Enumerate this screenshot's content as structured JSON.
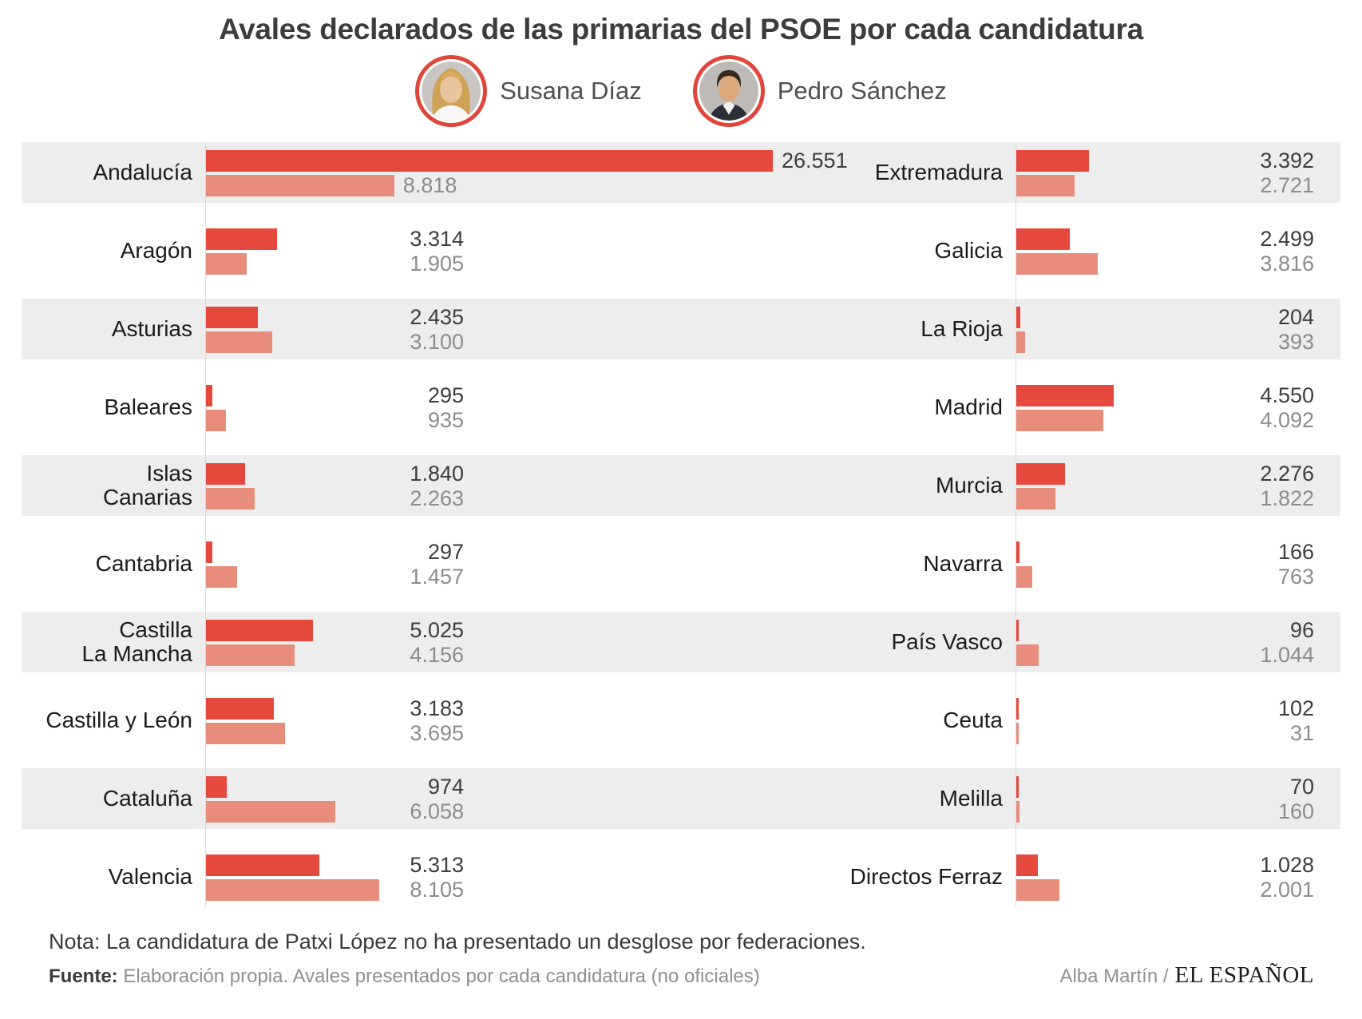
{
  "title": "Avales declarados de las primarias del PSOE por cada candidatura",
  "legend": {
    "items": [
      {
        "name": "Susana Díaz"
      },
      {
        "name": "Pedro Sánchez"
      }
    ]
  },
  "colors": {
    "diaz_bar": "#e5483d",
    "sanchez_bar": "#e88d7c",
    "avatar_ring": "#e0463c",
    "row_stripe": "#ededed",
    "axis_line": "#d9d9d9",
    "value_primary_text": "#3d3d3d",
    "value_secondary_text": "#8c8c8c",
    "region_text": "#1b1b1b",
    "title_text": "#3c3c3c",
    "note_text": "#3a3a3a",
    "source_text": "#8f8f8f",
    "logo_text": "#1d1d1d"
  },
  "chart_data": {
    "type": "bar",
    "orientation": "horizontal",
    "series": [
      "Susana Díaz",
      "Pedro Sánchez"
    ],
    "value_axis_max": 26551,
    "number_format": "es-ES thousands with dot",
    "legend_position": "top",
    "grid": false,
    "left_column": [
      {
        "region": "Andalucía",
        "region_lines": [
          "Andalucía"
        ],
        "values": [
          26551,
          8818
        ],
        "value_labels": [
          "26.551",
          "8.818"
        ]
      },
      {
        "region": "Aragón",
        "region_lines": [
          "Aragón"
        ],
        "values": [
          3314,
          1905
        ],
        "value_labels": [
          "3.314",
          "1.905"
        ]
      },
      {
        "region": "Asturias",
        "region_lines": [
          "Asturias"
        ],
        "values": [
          2435,
          3100
        ],
        "value_labels": [
          "2.435",
          "3.100"
        ]
      },
      {
        "region": "Baleares",
        "region_lines": [
          "Baleares"
        ],
        "values": [
          295,
          935
        ],
        "value_labels": [
          "295",
          "935"
        ]
      },
      {
        "region": "Islas Canarias",
        "region_lines": [
          "Islas",
          "Canarias"
        ],
        "values": [
          1840,
          2263
        ],
        "value_labels": [
          "1.840",
          "2.263"
        ]
      },
      {
        "region": "Cantabria",
        "region_lines": [
          "Cantabria"
        ],
        "values": [
          297,
          1457
        ],
        "value_labels": [
          "297",
          "1.457"
        ]
      },
      {
        "region": "Castilla La Mancha",
        "region_lines": [
          "Castilla",
          "La Mancha"
        ],
        "values": [
          5025,
          4156
        ],
        "value_labels": [
          "5.025",
          "4.156"
        ]
      },
      {
        "region": "Castilla y León",
        "region_lines": [
          "Castilla y León"
        ],
        "values": [
          3183,
          3695
        ],
        "value_labels": [
          "3.183",
          "3.695"
        ]
      },
      {
        "region": "Cataluña",
        "region_lines": [
          "Cataluña"
        ],
        "values": [
          974,
          6058
        ],
        "value_labels": [
          "974",
          "6.058"
        ]
      },
      {
        "region": "Valencia",
        "region_lines": [
          "Valencia"
        ],
        "values": [
          5313,
          8105
        ],
        "value_labels": [
          "5.313",
          "8.105"
        ]
      }
    ],
    "right_column": [
      {
        "region": "Extremadura",
        "region_lines": [
          "Extremadura"
        ],
        "values": [
          3392,
          2721
        ],
        "value_labels": [
          "3.392",
          "2.721"
        ]
      },
      {
        "region": "Galicia",
        "region_lines": [
          "Galicia"
        ],
        "values": [
          2499,
          3816
        ],
        "value_labels": [
          "2.499",
          "3.816"
        ]
      },
      {
        "region": "La Rioja",
        "region_lines": [
          "La Rioja"
        ],
        "values": [
          204,
          393
        ],
        "value_labels": [
          "204",
          "393"
        ]
      },
      {
        "region": "Madrid",
        "region_lines": [
          "Madrid"
        ],
        "values": [
          4550,
          4092
        ],
        "value_labels": [
          "4.550",
          "4.092"
        ]
      },
      {
        "region": "Murcia",
        "region_lines": [
          "Murcia"
        ],
        "values": [
          2276,
          1822
        ],
        "value_labels": [
          "2.276",
          "1.822"
        ]
      },
      {
        "region": "Navarra",
        "region_lines": [
          "Navarra"
        ],
        "values": [
          166,
          763
        ],
        "value_labels": [
          "166",
          "763"
        ]
      },
      {
        "region": "País Vasco",
        "region_lines": [
          "País Vasco"
        ],
        "values": [
          96,
          1044
        ],
        "value_labels": [
          "96",
          "1.044"
        ]
      },
      {
        "region": "Ceuta",
        "region_lines": [
          "Ceuta"
        ],
        "values": [
          102,
          31
        ],
        "value_labels": [
          "102",
          "31"
        ]
      },
      {
        "region": "Melilla",
        "region_lines": [
          "Melilla"
        ],
        "values": [
          70,
          160
        ],
        "value_labels": [
          "70",
          "160"
        ]
      },
      {
        "region": "Directos Ferraz",
        "region_lines": [
          "Directos Ferraz"
        ],
        "values": [
          1028,
          2001
        ],
        "value_labels": [
          "1.028",
          "2.001"
        ]
      }
    ]
  },
  "footer": {
    "note": "Nota: La candidatura de Patxi López no ha presentado un desglose por federaciones.",
    "source_label": "Fuente:",
    "source_text": "Elaboración propia. Avales presentados por cada candidatura (no oficiales)",
    "credit_author": "Alba Martín /",
    "credit_brand": "EL ESPAÑOL"
  }
}
